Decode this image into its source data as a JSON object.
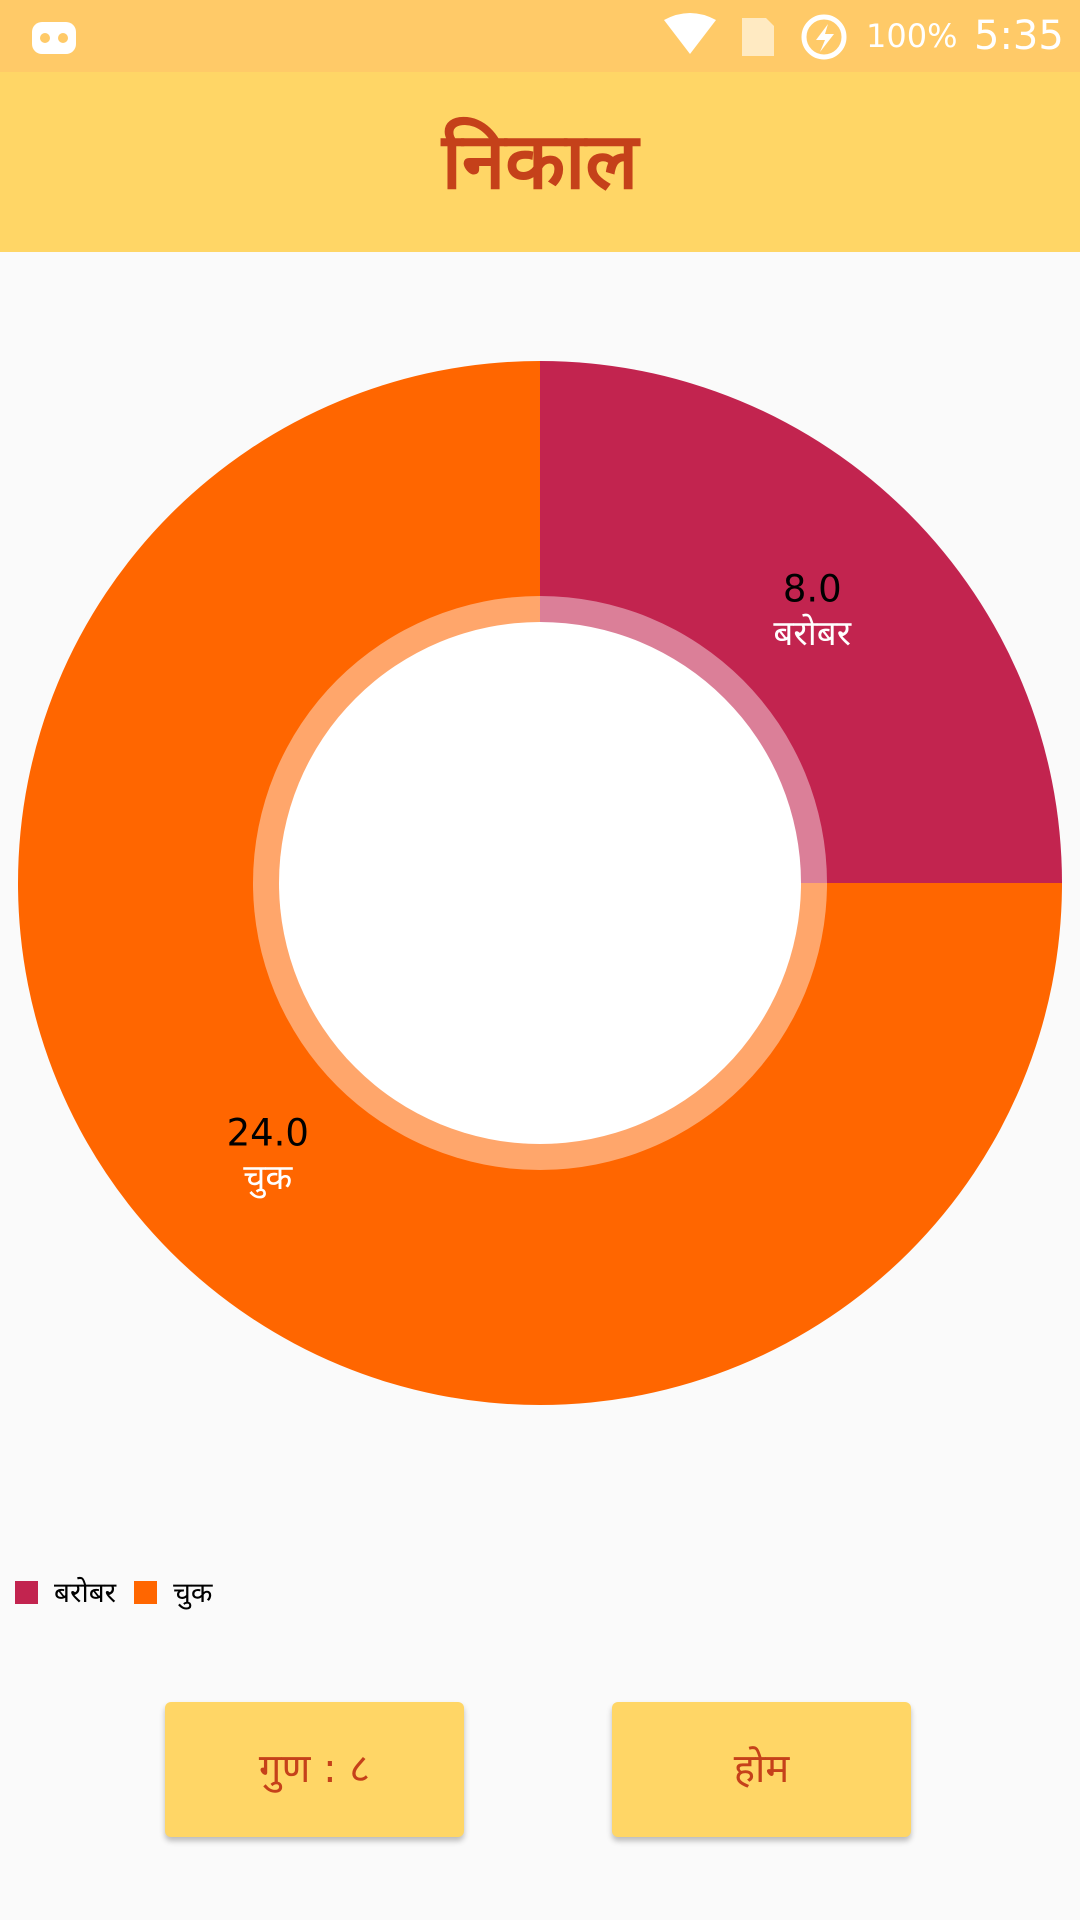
{
  "status_bar": {
    "battery": "100%",
    "time": "5:35"
  },
  "header": {
    "title": "निकाल"
  },
  "chart_data": {
    "type": "donut",
    "categories": [
      "बरोबर",
      "चुक"
    ],
    "values": [
      8,
      24
    ],
    "value_labels": [
      "8.0",
      "24.0"
    ],
    "colors": [
      "#c2244f",
      "#ff6600"
    ],
    "legend": "bottom-left"
  },
  "buttons": [
    "गुण : ८",
    "होम"
  ]
}
